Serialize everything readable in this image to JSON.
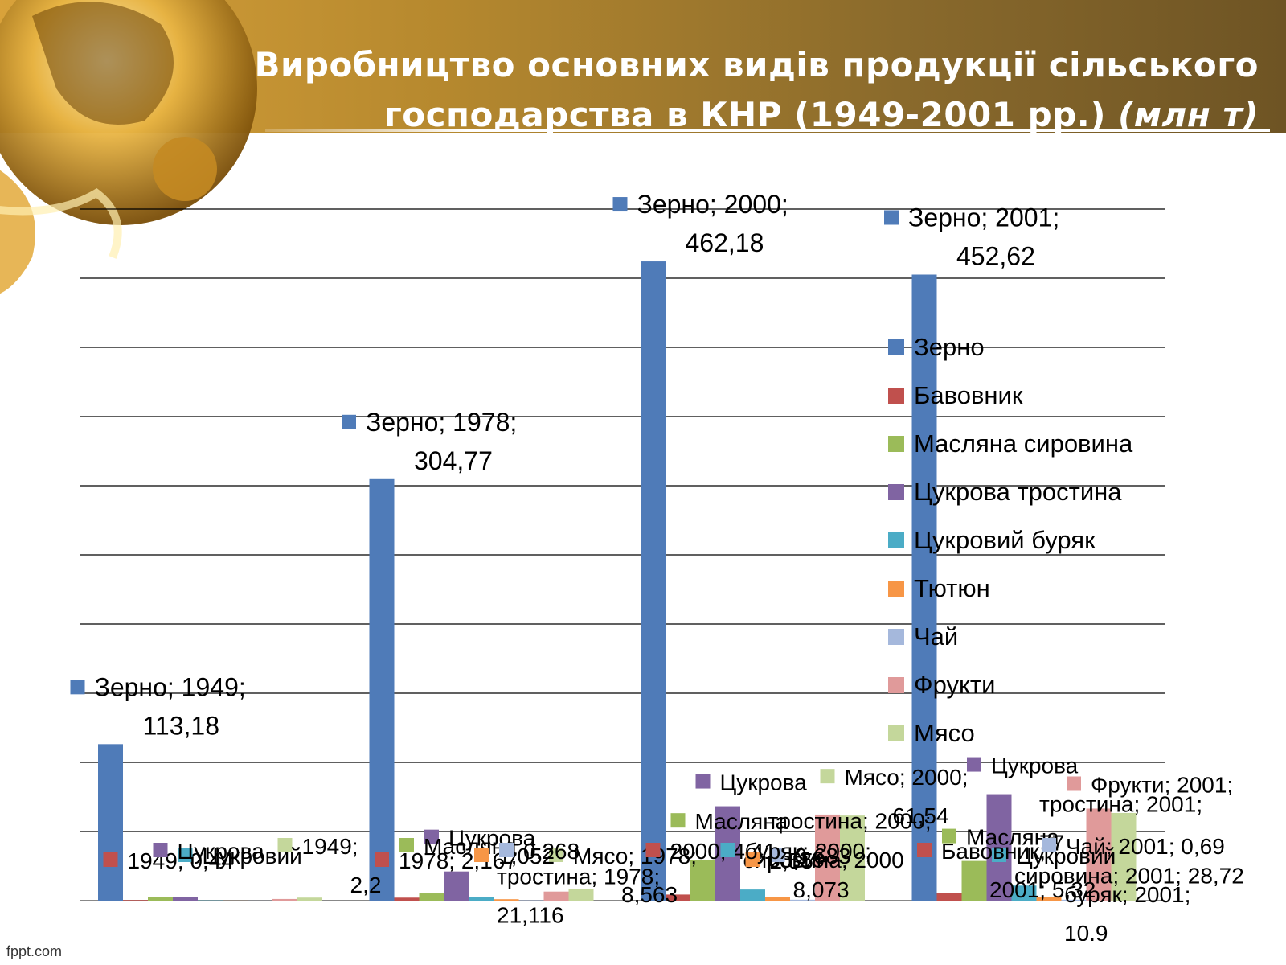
{
  "title": {
    "main": "Виробництво основних видів продукції сільського господарства в КНР (1949-2001 рр.)",
    "unit": "(млн т)"
  },
  "footer": "fppt.com",
  "colors": {
    "Зерно": "#4f7bb8",
    "Бавовник": "#c0504d",
    "Масляна сировина": "#9bbb59",
    "Цукрова тростина": "#8064a2",
    "Цукровий буряк": "#4bacc6",
    "Тютюн": "#f79646",
    "Чай": "#a5b8dc",
    "Фрукти": "#e09a9a",
    "Мясо": "#c4d79b"
  },
  "chart_data": {
    "type": "bar",
    "title": "",
    "xlabel": "",
    "ylabel": "",
    "ylim": [
      0,
      500
    ],
    "grid": true,
    "legend": "right",
    "categories": [
      "1949",
      "1978",
      "2000",
      "2001"
    ],
    "series": [
      {
        "name": "Зерно",
        "values": [
          113.18,
          304.77,
          462.18,
          452.62
        ]
      },
      {
        "name": "Бавовник",
        "values": [
          0.44,
          2.17,
          4.41,
          5.32
        ]
      },
      {
        "name": "Масляна сировина",
        "values": [
          2.56,
          5.22,
          29.55,
          28.72
        ]
      },
      {
        "name": "Цукрова тростина",
        "values": [
          2.64,
          21.12,
          68.28,
          77.0
        ]
      },
      {
        "name": "Цукровий буряк",
        "values": [
          0.19,
          2.7,
          8.07,
          10.9
        ]
      },
      {
        "name": "Тютюн",
        "values": [
          0.04,
          1.05,
          2.55,
          2.35
        ]
      },
      {
        "name": "Чай",
        "values": [
          0.04,
          0.27,
          0.68,
          0.69
        ]
      },
      {
        "name": "Фрукти",
        "values": [
          1.2,
          6.57,
          62.25,
          66.58
        ]
      },
      {
        "name": "Мясо",
        "values": [
          2.2,
          8.563,
          61.54,
          63.4
        ]
      }
    ],
    "data_labels": [
      {
        "series": "Зерно",
        "category": "1949",
        "text": "Зерно; 1949;\n113,18"
      },
      {
        "series": "Зерно",
        "category": "1978",
        "text": "Зерно; 1978;\n304,77"
      },
      {
        "series": "Зерно",
        "category": "2000",
        "text": "Зерно; 2000;\n462,18"
      },
      {
        "series": "Зерно",
        "category": "2001",
        "text": "Зерно; 2001;\n452,62"
      },
      {
        "series": "Цукрова тростина",
        "category": "2000",
        "text": "Цукрова\nтростина; 2000;\n68,28"
      },
      {
        "series": "Цукрова тростина",
        "category": "2001",
        "text": "Цукрова\nтростина; 2001;\n77"
      },
      {
        "series": "Цукрова тростина",
        "category": "1978",
        "text": "Цукрова\nтростина; 1978;\n21,116"
      },
      {
        "series": "Масляна сировина",
        "category": "2000",
        "text": "Масляна\nсировина; 2000"
      },
      {
        "series": "Масляна сировина",
        "category": "2001",
        "text": "Масляна\nсировина; 2001; 28,72"
      },
      {
        "series": "Цукровий буряк",
        "category": "2001",
        "text": "Цукровий\nбуряк; 2001;\n10,9"
      },
      {
        "series": "Бавовник",
        "category": "2001",
        "text": "Бавовник;\n2001; 5,32"
      },
      {
        "series": "Чай",
        "category": "2001",
        "text": "Чай; 2001; 0,69"
      },
      {
        "series": "Фрукти",
        "category": "2001",
        "text": "Фрукти; 2001;"
      },
      {
        "series": "Мясо",
        "category": "1978",
        "text": "Мясо; 1978;\n8,563"
      },
      {
        "series": "Бавовник",
        "category": "2000",
        "text": "2000; 4,41"
      },
      {
        "series": "Мясо",
        "category": "2000",
        "text": "Мясо; 2000;\n61,54"
      },
      {
        "series": "Тютюн",
        "category": "2000",
        "text": "2,55"
      },
      {
        "series": "Чай",
        "category": "2000",
        "text": "0,683"
      },
      {
        "series": "Цукровий буряк",
        "category": "2000",
        "text": "буряк; 2000;\n8,073"
      },
      {
        "series": "Мясо",
        "category": "1949",
        "text": "1949;\n2,2"
      },
      {
        "series": "Бавовник",
        "category": "1949",
        "text": "1949; 0,44"
      },
      {
        "series": "Цукровий буряк",
        "category": "1949",
        "text": "Цукровий"
      },
      {
        "series": "Цукрова тростина",
        "category": "1949",
        "text": "Цукрова"
      },
      {
        "series": "Масляна сировина",
        "category": "1978",
        "text": "Масляна"
      },
      {
        "series": "Бавовник",
        "category": "1978",
        "text": "1978; 2,167"
      },
      {
        "series": "Тютюн",
        "category": "1978",
        "text": "1,052"
      },
      {
        "series": "Чай",
        "category": "1978",
        "text": "0,268"
      }
    ]
  }
}
